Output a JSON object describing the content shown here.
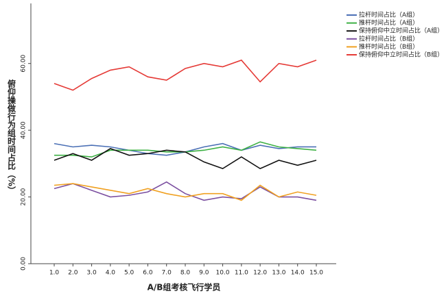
{
  "chart_data": {
    "type": "line",
    "y_label": "俯仰操做行为组时间占比（%）",
    "x_label": "A/B组考核飞行学员",
    "categories": [
      "1.0",
      "2.0",
      "3.0",
      "4.0",
      "5.0",
      "6.0",
      "7.0",
      "8.0",
      "9.0",
      "10.0",
      "11.0",
      "12.0",
      "13.0",
      "14.0",
      "15.0"
    ],
    "ylim": [
      0,
      78
    ],
    "yticks": [
      {
        "value": 0,
        "label": "0.00"
      },
      {
        "value": 20,
        "label": "20.00"
      },
      {
        "value": 40,
        "label": "40.00"
      },
      {
        "value": 60,
        "label": "60.00"
      }
    ],
    "series": [
      {
        "name": "拉杆时间占比（A组）",
        "color": "#4a6fb5",
        "values": [
          36,
          35,
          35.5,
          35,
          34,
          33,
          32.5,
          33.5,
          35,
          36,
          34,
          35.5,
          34.5,
          35,
          35
        ]
      },
      {
        "name": "推杆时间占比（A组）",
        "color": "#3cb043",
        "values": [
          32.5,
          32.5,
          32,
          34,
          34,
          34,
          33.5,
          33.5,
          34,
          35,
          34,
          36.5,
          35,
          34.5,
          34
        ]
      },
      {
        "name": "保持俯仰中立时间占比（A组）",
        "color": "#111111",
        "values": [
          31,
          33,
          31,
          34.5,
          32.5,
          33,
          34,
          33.5,
          30.5,
          28.5,
          32,
          28.5,
          31,
          29.5,
          31
        ]
      },
      {
        "name": "拉杆时间占比（B组）",
        "color": "#7b4fa0",
        "values": [
          22.5,
          24,
          22,
          20,
          20.5,
          21.5,
          24.5,
          21,
          19,
          20,
          19.5,
          23,
          20,
          20,
          19
        ]
      },
      {
        "name": "推杆时间占比（B组）",
        "color": "#f0a020",
        "values": [
          23.5,
          24,
          23,
          22,
          21,
          22.5,
          21,
          20,
          21,
          21,
          19,
          23.5,
          20,
          21.5,
          20.5
        ]
      },
      {
        "name": "保持俯仰中立时间占比（B组）",
        "color": "#e53935",
        "values": [
          54,
          52,
          55.5,
          58,
          59,
          56,
          55,
          58.5,
          60,
          59,
          61,
          54.5,
          60,
          59,
          61
        ]
      }
    ]
  }
}
